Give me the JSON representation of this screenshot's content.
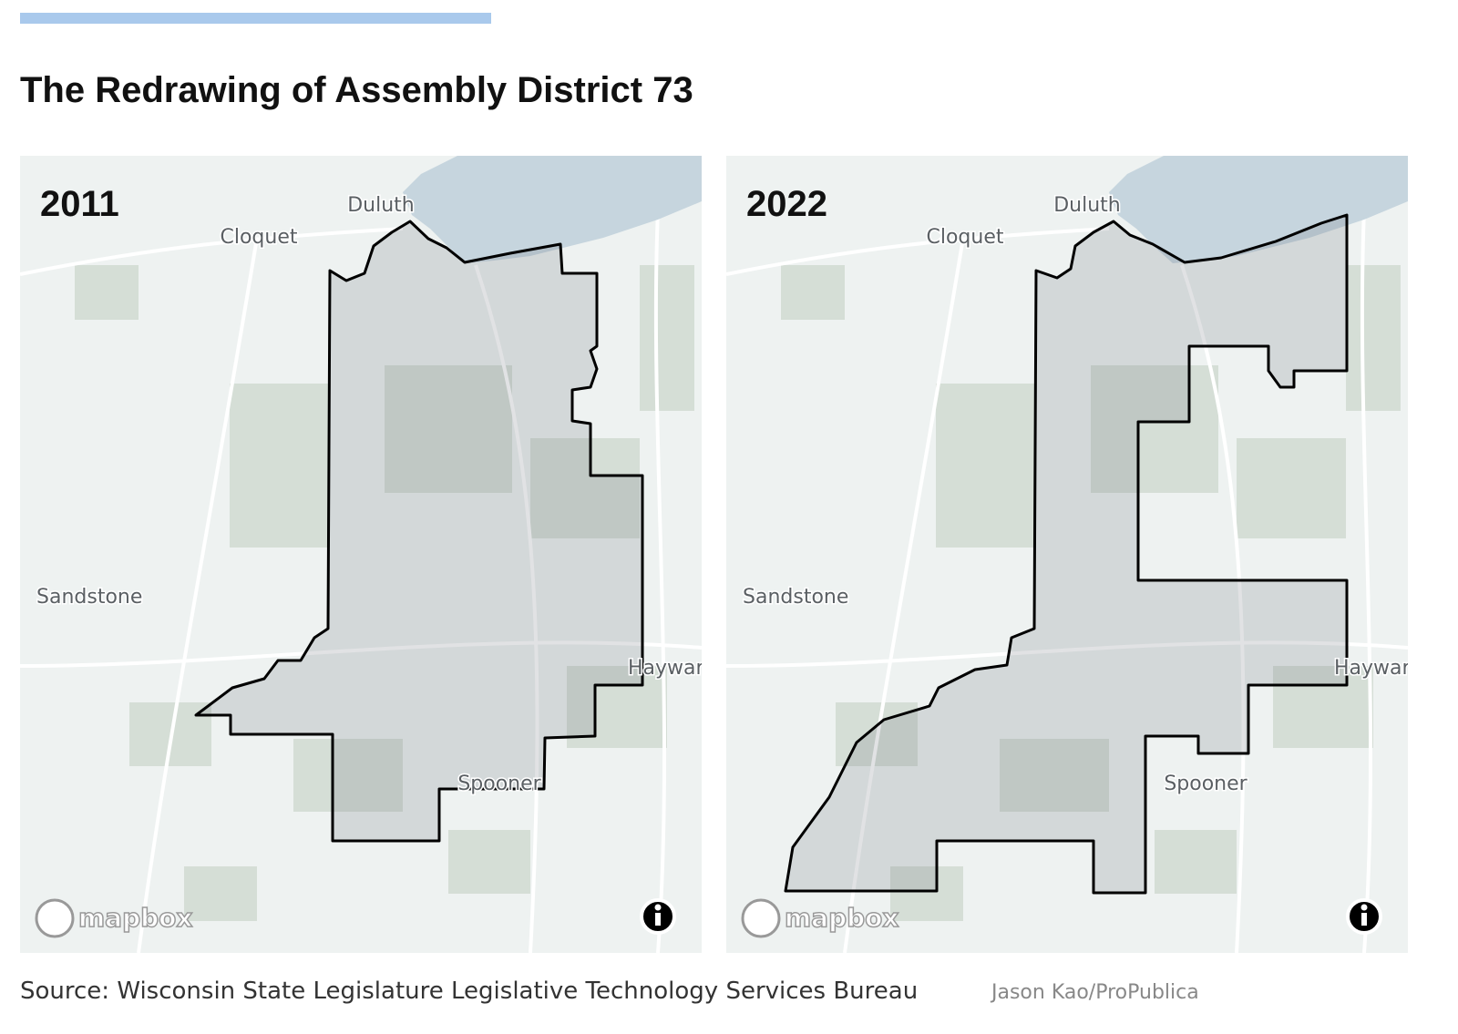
{
  "header": {
    "title": "The Redrawing of Assembly District 73"
  },
  "maps": [
    {
      "year": "2011",
      "labels": [
        "Duluth",
        "Cloquet",
        "Sandstone",
        "Hayward",
        "Spooner"
      ],
      "attribution": "mapbox"
    },
    {
      "year": "2022",
      "labels": [
        "Duluth",
        "Cloquet",
        "Sandstone",
        "Hayward",
        "Spooner"
      ],
      "attribution": "mapbox"
    }
  ],
  "footer": {
    "source": "Source: Wisconsin State Legislature Legislative Technology Services Bureau",
    "credit": "Jason Kao/ProPublica"
  }
}
